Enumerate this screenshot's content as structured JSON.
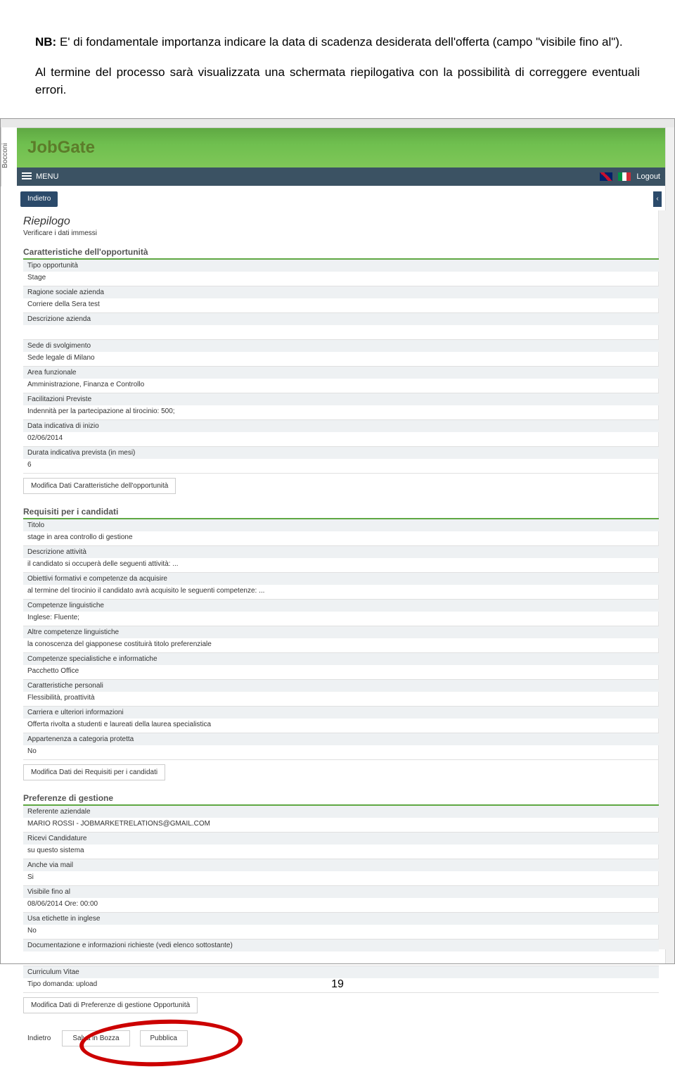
{
  "intro": {
    "p1_bold": "NB:",
    "p1": " E' di fondamentale importanza indicare la data di scadenza desiderata dell'offerta (campo \"visibile fino al\").",
    "p2": "Al termine del processo sarà visualizzata una schermata riepilogativa con la possibilità di correggere eventuali errori."
  },
  "app": {
    "bocconi": "Bocconi",
    "title": "JobGate",
    "menu": "MENU",
    "logout": "Logout",
    "indietro": "Indietro",
    "riepilogo": "Riepilogo",
    "riepilogo_sub": "Verificare i dati immessi"
  },
  "sec1": {
    "title": "Caratteristiche dell'opportunità",
    "fields": [
      {
        "label": "Tipo opportunità",
        "value": "Stage"
      },
      {
        "label": "Ragione sociale azienda",
        "value": "Corriere della Sera test"
      },
      {
        "label": "Descrizione azienda",
        "value": ""
      },
      {
        "label": "Sede di svolgimento",
        "value": "Sede legale di Milano"
      },
      {
        "label": "Area funzionale",
        "value": "Amministrazione, Finanza e Controllo"
      },
      {
        "label": "Facilitazioni Previste",
        "value": "Indennità per la partecipazione al tirocinio: 500;"
      },
      {
        "label": "Data indicativa di inizio",
        "value": "02/06/2014"
      },
      {
        "label": "Durata indicativa prevista (in mesi)",
        "value": "6"
      }
    ],
    "modify": "Modifica Dati Caratteristiche dell'opportunità"
  },
  "sec2": {
    "title": "Requisiti per i candidati",
    "fields": [
      {
        "label": "Titolo",
        "value": "stage in area controllo di gestione"
      },
      {
        "label": "Descrizione attività",
        "value": "il candidato si occuperà delle seguenti attività: ..."
      },
      {
        "label": "Obiettivi formativi e competenze da acquisire",
        "value": "al termine del tirocinio il candidato avrà acquisito le seguenti competenze: ..."
      },
      {
        "label": "Competenze linguistiche",
        "value": "Inglese: Fluente;"
      },
      {
        "label": "Altre competenze linguistiche",
        "value": "la conoscenza del giapponese costituirà titolo preferenziale"
      },
      {
        "label": "Competenze specialistiche e informatiche",
        "value": "Pacchetto Office"
      },
      {
        "label": "Caratteristiche personali",
        "value": "Flessibilità, proattività"
      },
      {
        "label": "Carriera e ulteriori informazioni",
        "value": "Offerta rivolta a studenti e laureati della laurea specialistica"
      },
      {
        "label": "Appartenenza a categoria protetta",
        "value": "No"
      }
    ],
    "modify": "Modifica Dati dei Requisiti per i candidati"
  },
  "sec3": {
    "title": "Preferenze di gestione",
    "fields": [
      {
        "label": "Referente aziendale",
        "value": "MARIO ROSSI - JOBMARKETRELATIONS@GMAIL.COM"
      },
      {
        "label": "Ricevi Candidature",
        "value": "su questo sistema"
      },
      {
        "label": "Anche via mail",
        "value": "Si"
      },
      {
        "label": "Visibile fino al",
        "value": "08/06/2014 Ore: 00:00"
      },
      {
        "label": "Usa etichette in inglese",
        "value": "No"
      },
      {
        "label": "Documentazione e informazioni richieste (vedi elenco sottostante)",
        "value": ""
      },
      {
        "label": "Curriculum Vitae",
        "value": "Tipo domanda: upload"
      }
    ],
    "modify": "Modifica Dati di Preferenze di gestione Opportunità"
  },
  "actions": {
    "indietro": "Indietro",
    "salva": "Salva in Bozza",
    "pubblica": "Pubblica"
  },
  "pagenum": "19"
}
